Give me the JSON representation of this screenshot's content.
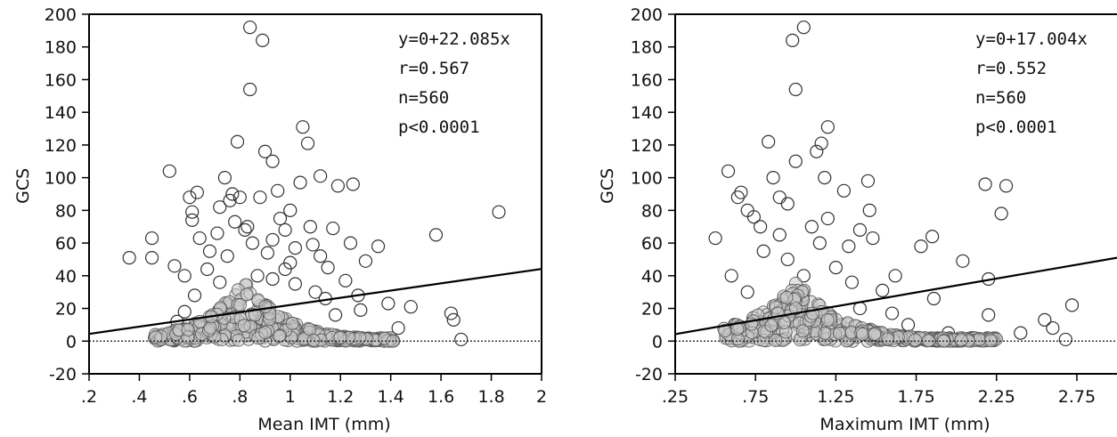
{
  "chart_data": [
    {
      "type": "scatter",
      "xlabel": "Mean IMT (mm)",
      "ylabel": "GCS",
      "xlim": [
        0.2,
        2.0
      ],
      "ylim": [
        -20,
        200
      ],
      "xticks": [
        0.2,
        0.4,
        0.6,
        0.8,
        1.0,
        1.2,
        1.4,
        1.6,
        1.8,
        2.0
      ],
      "xtick_labels": [
        ".2",
        ".4",
        ".6",
        ".8",
        "1",
        "1.2",
        "1.4",
        "1.6",
        "1.8",
        "2"
      ],
      "yticks": [
        -20,
        0,
        20,
        40,
        60,
        80,
        100,
        120,
        140,
        160,
        180,
        200
      ],
      "ytick_labels": [
        "-20",
        "0",
        "20",
        "40",
        "60",
        "80",
        "100",
        "120",
        "140",
        "160",
        "180",
        "200"
      ],
      "annotations": [
        "y=0+22.085x",
        "r=0.567",
        "n=560",
        "p<0.0001"
      ],
      "regression": {
        "intercept": 0,
        "slope": 22.085
      },
      "zero_line": true,
      "points": [
        [
          0.36,
          51
        ],
        [
          0.45,
          51
        ],
        [
          0.45,
          63
        ],
        [
          0.52,
          104
        ],
        [
          0.54,
          46
        ],
        [
          0.58,
          40
        ],
        [
          0.6,
          88
        ],
        [
          0.61,
          79
        ],
        [
          0.61,
          74
        ],
        [
          0.63,
          91
        ],
        [
          0.64,
          63
        ],
        [
          0.67,
          44
        ],
        [
          0.71,
          66
        ],
        [
          0.72,
          82
        ],
        [
          0.74,
          100
        ],
        [
          0.76,
          86
        ],
        [
          0.77,
          90
        ],
        [
          0.78,
          73
        ],
        [
          0.79,
          122
        ],
        [
          0.8,
          88
        ],
        [
          0.82,
          68
        ],
        [
          0.83,
          70
        ],
        [
          0.84,
          192
        ],
        [
          0.84,
          154
        ],
        [
          0.88,
          88
        ],
        [
          0.89,
          184
        ],
        [
          0.9,
          116
        ],
        [
          0.93,
          110
        ],
        [
          0.93,
          62
        ],
        [
          0.95,
          92
        ],
        [
          0.96,
          75
        ],
        [
          0.98,
          68
        ],
        [
          1.0,
          80
        ],
        [
          1.02,
          57
        ],
        [
          1.04,
          97
        ],
        [
          1.05,
          131
        ],
        [
          1.07,
          121
        ],
        [
          1.08,
          70
        ],
        [
          1.09,
          59
        ],
        [
          1.12,
          101
        ],
        [
          1.17,
          69
        ],
        [
          1.19,
          95
        ],
        [
          1.24,
          60
        ],
        [
          1.25,
          96
        ],
        [
          1.27,
          28
        ],
        [
          1.3,
          49
        ],
        [
          1.35,
          58
        ],
        [
          1.39,
          23
        ],
        [
          1.48,
          21
        ],
        [
          1.58,
          65
        ],
        [
          1.64,
          17
        ],
        [
          1.65,
          13
        ],
        [
          1.68,
          1
        ],
        [
          1.83,
          79
        ],
        [
          1.12,
          52
        ],
        [
          1.15,
          45
        ],
        [
          0.87,
          40
        ],
        [
          0.93,
          38
        ],
        [
          1.1,
          30
        ],
        [
          0.98,
          44
        ],
        [
          0.68,
          55
        ],
        [
          0.75,
          52
        ],
        [
          0.62,
          28
        ],
        [
          0.55,
          12
        ],
        [
          0.58,
          18
        ],
        [
          1.22,
          37
        ],
        [
          1.28,
          19
        ],
        [
          1.43,
          8
        ],
        [
          1.02,
          35
        ],
        [
          0.91,
          54
        ],
        [
          1.14,
          26
        ],
        [
          1.18,
          16
        ],
        [
          0.85,
          60
        ],
        [
          1.0,
          48
        ],
        [
          0.72,
          36
        ]
      ]
    },
    {
      "type": "scatter",
      "xlabel": "Maximum IMT (mm)",
      "ylabel": "GCS",
      "xlim": [
        0.25,
        3.0
      ],
      "ylim": [
        -20,
        200
      ],
      "xticks": [
        0.25,
        0.75,
        1.25,
        1.75,
        2.25,
        2.75
      ],
      "xtick_labels": [
        ".25",
        ".75",
        "1.25",
        "1.75",
        "2.25",
        "2.75"
      ],
      "yticks": [
        -20,
        0,
        20,
        40,
        60,
        80,
        100,
        120,
        140,
        160,
        180,
        200
      ],
      "ytick_labels": [
        "-20",
        "0",
        "20",
        "40",
        "60",
        "80",
        "100",
        "120",
        "140",
        "160",
        "180",
        "200"
      ],
      "annotations": [
        "y=0+17.004x",
        "r=0.552",
        "n=560",
        "p<0.0001"
      ],
      "regression": {
        "intercept": 0,
        "slope": 17.004
      },
      "zero_line": true,
      "points": [
        [
          0.5,
          63
        ],
        [
          0.58,
          104
        ],
        [
          0.6,
          40
        ],
        [
          0.64,
          88
        ],
        [
          0.66,
          91
        ],
        [
          0.7,
          80
        ],
        [
          0.74,
          76
        ],
        [
          0.78,
          70
        ],
        [
          0.83,
          122
        ],
        [
          0.86,
          100
        ],
        [
          0.9,
          88
        ],
        [
          0.95,
          84
        ],
        [
          0.98,
          184
        ],
        [
          1.0,
          154
        ],
        [
          1.0,
          110
        ],
        [
          1.05,
          192
        ],
        [
          1.1,
          70
        ],
        [
          1.13,
          116
        ],
        [
          1.16,
          121
        ],
        [
          1.2,
          131
        ],
        [
          1.18,
          100
        ],
        [
          1.3,
          92
        ],
        [
          1.33,
          58
        ],
        [
          1.4,
          68
        ],
        [
          1.45,
          98
        ],
        [
          1.46,
          80
        ],
        [
          1.48,
          63
        ],
        [
          1.54,
          31
        ],
        [
          1.62,
          40
        ],
        [
          1.78,
          58
        ],
        [
          1.85,
          64
        ],
        [
          1.86,
          26
        ],
        [
          2.04,
          49
        ],
        [
          2.18,
          96
        ],
        [
          2.2,
          38
        ],
        [
          2.2,
          16
        ],
        [
          2.28,
          78
        ],
        [
          2.31,
          95
        ],
        [
          2.55,
          13
        ],
        [
          2.6,
          8
        ],
        [
          2.72,
          22
        ],
        [
          2.68,
          1
        ],
        [
          2.1,
          2
        ],
        [
          2.4,
          5
        ],
        [
          1.95,
          5
        ],
        [
          1.25,
          45
        ],
        [
          1.35,
          36
        ],
        [
          0.95,
          50
        ],
        [
          1.05,
          40
        ],
        [
          0.8,
          55
        ],
        [
          1.15,
          60
        ],
        [
          0.7,
          30
        ],
        [
          0.62,
          10
        ],
        [
          1.6,
          17
        ],
        [
          1.7,
          10
        ],
        [
          2.0,
          1
        ],
        [
          1.4,
          20
        ],
        [
          1.2,
          75
        ],
        [
          0.9,
          65
        ]
      ]
    }
  ]
}
